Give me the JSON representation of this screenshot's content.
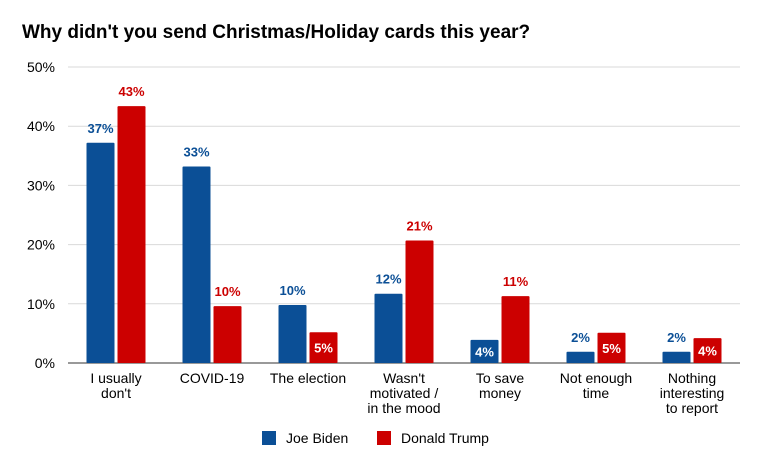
{
  "chart_data": {
    "type": "bar",
    "title": "Why didn't you send Christmas/Holiday cards this year?",
    "xlabel": "",
    "ylabel": "",
    "ylim": [
      0,
      50
    ],
    "yticks": [
      "0%",
      "10%",
      "20%",
      "30%",
      "40%",
      "50%"
    ],
    "grid": true,
    "legend_position": "bottom",
    "categories": [
      [
        "I usually",
        "don't"
      ],
      [
        "COVID-19"
      ],
      [
        "The election"
      ],
      [
        "Wasn't",
        "motivated /",
        "in the mood"
      ],
      [
        "To save",
        "money"
      ],
      [
        "Not enough",
        "time"
      ],
      [
        "Nothing",
        "interesting",
        "to report"
      ]
    ],
    "series": [
      {
        "name": "Joe Biden",
        "color": "#0b4f96",
        "values": [
          37.2,
          33.2,
          9.8,
          11.7,
          3.9,
          1.9,
          1.9
        ],
        "labels": [
          "37%",
          "33%",
          "10%",
          "12%",
          "4%",
          "2%",
          "2%"
        ],
        "label_inside": [
          false,
          false,
          false,
          false,
          true,
          false,
          false
        ]
      },
      {
        "name": "Donald Trump",
        "color": "#cc0000",
        "values": [
          43.4,
          9.6,
          5.2,
          20.7,
          11.3,
          5.1,
          4.2
        ],
        "labels": [
          "43%",
          "10%",
          "5%",
          "21%",
          "11%",
          "5%",
          "4%"
        ],
        "label_inside": [
          false,
          false,
          true,
          false,
          false,
          true,
          true
        ]
      }
    ]
  }
}
